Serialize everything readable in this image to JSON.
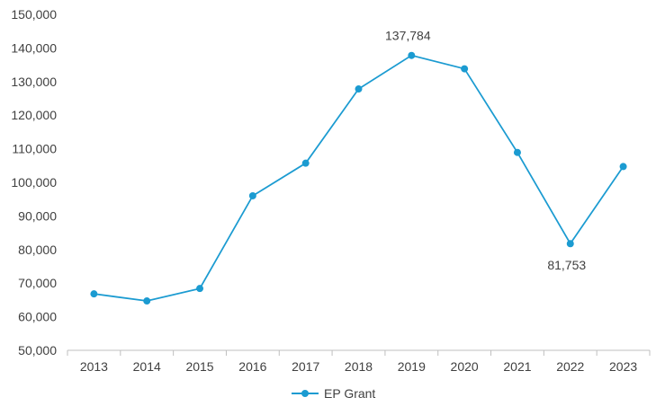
{
  "chart_data": {
    "type": "line",
    "categories": [
      "2013",
      "2014",
      "2015",
      "2016",
      "2017",
      "2018",
      "2019",
      "2020",
      "2021",
      "2022",
      "2023"
    ],
    "series": [
      {
        "name": "EP Grant",
        "values": [
          66800,
          64700,
          68400,
          96000,
          105700,
          127800,
          137784,
          133800,
          108900,
          81753,
          104700
        ],
        "color": "#1b9bd1"
      }
    ],
    "data_labels": [
      {
        "category": "2019",
        "text": "137,784",
        "position": "above"
      },
      {
        "category": "2022",
        "text": "81,753",
        "position": "below"
      }
    ],
    "y_ticks": [
      "50,000",
      "60,000",
      "70,000",
      "80,000",
      "90,000",
      "100,000",
      "110,000",
      "120,000",
      "130,000",
      "140,000",
      "150,000"
    ],
    "ylim": [
      50000,
      150000
    ],
    "grid": false,
    "legend_position": "bottom-center",
    "title": "",
    "xlabel": "",
    "ylabel": ""
  }
}
